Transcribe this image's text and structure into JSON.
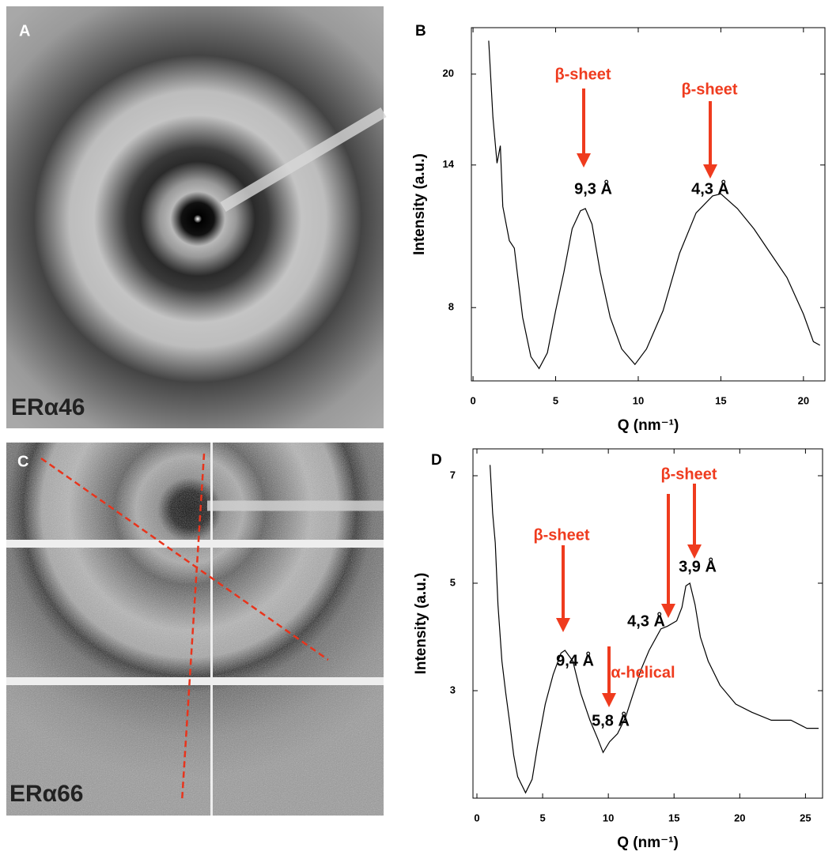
{
  "image_panels": [
    {
      "label": "A",
      "caption": "ERα46"
    },
    {
      "label": "C",
      "caption": "ERα66"
    }
  ],
  "chart_data": [
    {
      "type": "line",
      "panel_label": "B",
      "y_label": "Intensity (a.u.)",
      "x_label": "Q (nm⁻¹)",
      "color": "#000000",
      "yscale": "log",
      "annotations": [
        "β-sheet",
        "9,3 Å",
        "β-sheet",
        "4,3 Å"
      ],
      "xlim": [
        -0.1,
        21.3
      ],
      "ylim": [
        6,
        24
      ],
      "xticks": [
        0,
        5,
        10,
        15,
        20
      ],
      "yticks": [
        8,
        14,
        20
      ],
      "x": [
        0.95,
        1.2,
        1.45,
        1.65,
        1.8,
        2.2,
        2.5,
        3.0,
        3.5,
        4.0,
        4.5,
        5.0,
        5.5,
        6.0,
        6.5,
        6.8,
        7.2,
        7.7,
        8.3,
        9.0,
        9.8,
        10.5,
        11.5,
        12.5,
        13.5,
        14.5,
        15.0,
        16.0,
        17.0,
        18.0,
        19.0,
        20.0,
        20.6,
        21.0
      ],
      "values": [
        22.8,
        16.9,
        14.1,
        15.1,
        11.9,
        10.4,
        10.1,
        7.7,
        6.6,
        6.3,
        6.7,
        7.9,
        9.2,
        10.9,
        11.7,
        11.8,
        11.1,
        9.2,
        7.7,
        6.8,
        6.4,
        6.8,
        7.9,
        9.9,
        11.6,
        12.4,
        12.5,
        11.8,
        10.9,
        9.9,
        9.0,
        7.8,
        7.0,
        6.9
      ]
    },
    {
      "type": "line",
      "panel_label": "D",
      "y_label": "Intensity (a.u.)",
      "x_label": "Q (nm⁻¹)",
      "color": "#000000",
      "yscale": "linear",
      "annotations": [
        "β-sheet",
        "9,4 Å",
        "α-helical",
        "5,8 Å",
        "β-sheet",
        "4,3 Å",
        "3,9 Å"
      ],
      "xlim": [
        -0.3,
        26.3
      ],
      "ylim": [
        1,
        7.5
      ],
      "xticks": [
        0,
        5,
        10,
        15,
        20,
        25
      ],
      "yticks": [
        3,
        5,
        7
      ],
      "x": [
        1.0,
        1.2,
        1.4,
        1.6,
        1.9,
        2.2,
        2.5,
        2.8,
        3.1,
        3.4,
        3.7,
        4.2,
        4.6,
        5.2,
        5.8,
        6.4,
        6.7,
        7.3,
        7.9,
        8.6,
        9.2,
        9.6,
        10.1,
        10.7,
        11.3,
        11.9,
        12.5,
        13.1,
        14.0,
        14.5,
        15.2,
        15.6,
        15.9,
        16.2,
        16.6,
        17.0,
        17.6,
        18.5,
        19.7,
        20.9,
        22.4,
        23.9,
        25.1,
        26.0
      ],
      "values": [
        7.2,
        6.3,
        5.75,
        4.6,
        3.55,
        2.95,
        2.4,
        1.8,
        1.4,
        1.25,
        1.1,
        1.35,
        1.95,
        2.75,
        3.3,
        3.7,
        3.75,
        3.55,
        2.95,
        2.45,
        2.1,
        1.85,
        2.05,
        2.2,
        2.5,
        2.95,
        3.4,
        3.75,
        4.15,
        4.2,
        4.3,
        4.55,
        4.95,
        5.0,
        4.6,
        4.0,
        3.55,
        3.1,
        2.75,
        2.6,
        2.45,
        2.45,
        2.3,
        2.3
      ]
    }
  ]
}
